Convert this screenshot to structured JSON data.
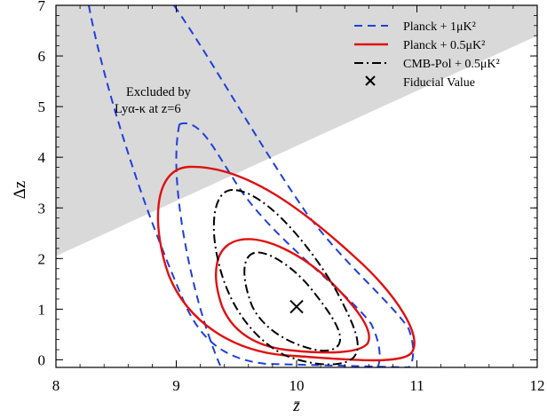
{
  "chart_data": {
    "type": "contour",
    "xlabel": "z̄",
    "ylabel": "Δz",
    "xlim": [
      8,
      12
    ],
    "ylim": [
      -0.15,
      7
    ],
    "x_ticks": [
      "8",
      "9",
      "10",
      "11",
      "12"
    ],
    "y_ticks": [
      "0",
      "1",
      "2",
      "3",
      "4",
      "5",
      "6",
      "7"
    ],
    "legend_position": "top-right",
    "excluded_region": {
      "label_line1": "Excluded by",
      "label_line2": "Lyα-κ at z=6",
      "boundary": [
        [
          8,
          2.05
        ],
        [
          12,
          6.4
        ]
      ],
      "fill_color": "#d9d9d9"
    },
    "fiducial": {
      "x": 10.0,
      "y": 1.05,
      "label": "Fiducial Value"
    },
    "series": [
      {
        "name": "Planck + 1μK²",
        "color": "#1f3fd9",
        "style": "dashed",
        "contours": [
          [
            [
              9.1,
              4.72
            ],
            [
              9.3,
              4.55
            ],
            [
              9.6,
              3.7
            ],
            [
              10.0,
              2.45
            ],
            [
              10.4,
              1.4
            ],
            [
              10.62,
              0.55
            ],
            [
              10.65,
              0.0
            ]
          ],
          [
            [
              8.36,
              7.0
            ],
            [
              8.6,
              5.0
            ],
            [
              8.85,
              3.0
            ],
            [
              9.1,
              1.4
            ],
            [
              9.3,
              0.55
            ],
            [
              9.55,
              0.1
            ]
          ]
        ]
      },
      {
        "name": "Planck + 0.5μK²",
        "color": "#e01010",
        "style": "solid",
        "contours": [
          [
            [
              9.15,
              3.88
            ],
            [
              9.6,
              3.6
            ],
            [
              10.1,
              2.7
            ],
            [
              10.6,
              1.6
            ],
            [
              10.98,
              0.55
            ],
            [
              10.9,
              0.27
            ],
            [
              10.4,
              0.2
            ],
            [
              9.6,
              0.55
            ],
            [
              9.05,
              1.7
            ],
            [
              8.92,
              2.9
            ]
          ],
          [
            [
              9.7,
              2.7
            ],
            [
              10.1,
              2.35
            ],
            [
              10.5,
              1.3
            ],
            [
              10.62,
              0.45
            ],
            [
              10.3,
              0.25
            ],
            [
              9.9,
              0.4
            ],
            [
              9.55,
              1.2
            ],
            [
              9.5,
              2.1
            ]
          ]
        ]
      },
      {
        "name": "CMB-Pol + 0.5μK²",
        "color": "#000000",
        "style": "dashdot",
        "contours": [
          [
            [
              9.65,
              3.3
            ],
            [
              9.9,
              3.0
            ],
            [
              10.25,
              1.9
            ],
            [
              10.5,
              0.7
            ],
            [
              10.35,
              0.15
            ],
            [
              10.0,
              0.25
            ],
            [
              9.6,
              1.2
            ],
            [
              9.48,
              2.5
            ]
          ],
          [
            [
              9.75,
              2.25
            ],
            [
              9.95,
              2.0
            ],
            [
              10.25,
              1.2
            ],
            [
              10.35,
              0.6
            ],
            [
              10.1,
              0.4
            ],
            [
              9.85,
              0.7
            ],
            [
              9.6,
              1.5
            ]
          ]
        ]
      }
    ]
  }
}
